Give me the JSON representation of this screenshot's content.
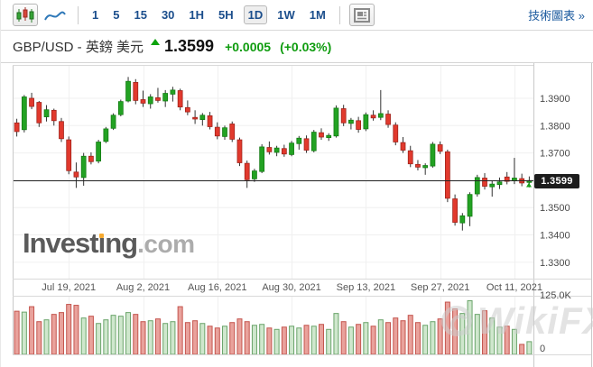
{
  "toolbar": {
    "chart_type_buttons": [
      {
        "name": "candlestick",
        "selected": true
      },
      {
        "name": "line",
        "selected": false
      }
    ],
    "timeframes": [
      {
        "label": "1",
        "selected": false
      },
      {
        "label": "5",
        "selected": false
      },
      {
        "label": "15",
        "selected": false
      },
      {
        "label": "30",
        "selected": false
      },
      {
        "label": "1H",
        "selected": false
      },
      {
        "label": "5H",
        "selected": false
      },
      {
        "label": "1D",
        "selected": true
      },
      {
        "label": "1W",
        "selected": false
      },
      {
        "label": "1M",
        "selected": false
      }
    ],
    "link_label": "技術圖表 »"
  },
  "quote": {
    "symbol": "GBP/USD - 英鎊 美元",
    "direction": "up",
    "price": "1.3599",
    "change": "+0.0005",
    "change_pct": "(+0.03%)"
  },
  "watermarks": {
    "investing": {
      "p1": "Invest",
      "p2": "ı",
      "p3": "ng",
      "suffix": ".com"
    },
    "wikifx": "WikiFX"
  },
  "colors": {
    "up": "#23a223",
    "up_border": "#127a12",
    "down": "#e1392d",
    "down_border": "#9d2018",
    "wick": "#333333",
    "vol_up_fill": "#cfe7cd",
    "vol_up_stroke": "#6aa46a",
    "vol_down_fill": "#e9a29c",
    "vol_down_stroke": "#c4554e",
    "grid": "#f0f0f0",
    "axis_border": "#c9c9c9",
    "price_line": "#222222",
    "badge_bg": "#1c1c1c",
    "accent_blue": "#1b4e8c",
    "quote_green": "#0f9c0f",
    "marker_green": "#18a018"
  },
  "chart_data": {
    "type": "candlestick",
    "title": "GBP/USD daily candlestick chart with volume",
    "price_axis": {
      "max": 1.4022,
      "min": 1.324
    },
    "grid_prices": [
      1.39,
      1.38,
      1.37,
      1.36,
      1.35,
      1.34,
      1.33
    ],
    "y_ticks": [
      {
        "label": "1.3900",
        "value": 1.39
      },
      {
        "label": "1.3800",
        "value": 1.38
      },
      {
        "label": "1.3700",
        "value": 1.37
      },
      {
        "label": "1.3500",
        "value": 1.35
      },
      {
        "label": "1.3400",
        "value": 1.34
      },
      {
        "label": "1.3300",
        "value": 1.33
      }
    ],
    "x_labels": [
      {
        "label": "Jul 19, 2021",
        "index": 7
      },
      {
        "label": "Aug 2, 2021",
        "index": 17
      },
      {
        "label": "Aug 16, 2021",
        "index": 27
      },
      {
        "label": "Aug 30, 2021",
        "index": 37
      },
      {
        "label": "Sep 13, 2021",
        "index": 47
      },
      {
        "label": "Sep 27, 2021",
        "index": 57
      },
      {
        "label": "Oct 11, 2021",
        "index": 67
      }
    ],
    "current_price": 1.3599,
    "current_price_label": "1.3599",
    "volume_axis": {
      "max": 125,
      "top_label": "125.0K",
      "bottom_label": "0"
    },
    "candles_format": [
      "open",
      "high",
      "low",
      "close",
      "volume_k"
    ],
    "candles": [
      [
        1.381,
        1.3825,
        1.376,
        1.3778,
        95
      ],
      [
        1.3785,
        1.3912,
        1.3775,
        1.3905,
        93
      ],
      [
        1.39,
        1.392,
        1.386,
        1.387,
        105
      ],
      [
        1.3885,
        1.389,
        1.3795,
        1.381,
        72
      ],
      [
        1.3832,
        1.3875,
        1.3815,
        1.3858,
        76
      ],
      [
        1.3856,
        1.3862,
        1.38,
        1.3818,
        88
      ],
      [
        1.3815,
        1.3828,
        1.374,
        1.3752,
        92
      ],
      [
        1.3748,
        1.376,
        1.3622,
        1.3635,
        110
      ],
      [
        1.363,
        1.3665,
        1.3572,
        1.3612,
        108
      ],
      [
        1.361,
        1.37,
        1.358,
        1.3688,
        80
      ],
      [
        1.3688,
        1.3702,
        1.3658,
        1.3668,
        84
      ],
      [
        1.367,
        1.3748,
        1.3662,
        1.374,
        68
      ],
      [
        1.3742,
        1.3795,
        1.3736,
        1.3788,
        76
      ],
      [
        1.379,
        1.3845,
        1.3784,
        1.3838,
        86
      ],
      [
        1.384,
        1.3895,
        1.3834,
        1.3888,
        84
      ],
      [
        1.389,
        1.3978,
        1.3885,
        1.3962,
        92
      ],
      [
        1.3958,
        1.397,
        1.3878,
        1.3892,
        88
      ],
      [
        1.3895,
        1.3928,
        1.3868,
        1.3882,
        72
      ],
      [
        1.388,
        1.3915,
        1.3862,
        1.3905,
        74
      ],
      [
        1.3902,
        1.3938,
        1.3884,
        1.3892,
        78
      ],
      [
        1.389,
        1.393,
        1.3868,
        1.3918,
        68
      ],
      [
        1.3915,
        1.3942,
        1.3888,
        1.393,
        72
      ],
      [
        1.3928,
        1.3935,
        1.3856,
        1.3868,
        105
      ],
      [
        1.3866,
        1.3892,
        1.3838,
        1.385,
        70
      ],
      [
        1.383,
        1.3856,
        1.3806,
        1.3824,
        74
      ],
      [
        1.3822,
        1.3846,
        1.38,
        1.3838,
        68
      ],
      [
        1.3836,
        1.385,
        1.3786,
        1.3796,
        62
      ],
      [
        1.3794,
        1.3812,
        1.375,
        1.3762,
        58
      ],
      [
        1.376,
        1.38,
        1.3748,
        1.3792,
        62
      ],
      [
        1.3806,
        1.3815,
        1.374,
        1.375,
        70
      ],
      [
        1.3748,
        1.3756,
        1.3652,
        1.3664,
        78
      ],
      [
        1.3662,
        1.3672,
        1.3572,
        1.3602,
        72
      ],
      [
        1.3605,
        1.3642,
        1.3594,
        1.3634,
        64
      ],
      [
        1.3632,
        1.3732,
        1.3626,
        1.3722,
        66
      ],
      [
        1.372,
        1.3742,
        1.3694,
        1.3704,
        58
      ],
      [
        1.3702,
        1.3726,
        1.3688,
        1.3718,
        55
      ],
      [
        1.3716,
        1.373,
        1.3686,
        1.3696,
        60
      ],
      [
        1.3694,
        1.3744,
        1.3688,
        1.3736,
        62
      ],
      [
        1.3734,
        1.3762,
        1.3712,
        1.3754,
        58
      ],
      [
        1.3752,
        1.3764,
        1.37,
        1.371,
        64
      ],
      [
        1.3708,
        1.3784,
        1.3702,
        1.3776,
        62
      ],
      [
        1.3774,
        1.379,
        1.3748,
        1.3758,
        66
      ],
      [
        1.3756,
        1.3772,
        1.3744,
        1.3764,
        55
      ],
      [
        1.3762,
        1.3874,
        1.3756,
        1.3864,
        90
      ],
      [
        1.3862,
        1.3876,
        1.3798,
        1.381,
        72
      ],
      [
        1.3808,
        1.3828,
        1.3786,
        1.382,
        60
      ],
      [
        1.3818,
        1.3832,
        1.3774,
        1.3786,
        66
      ],
      [
        1.3788,
        1.3848,
        1.378,
        1.384,
        70
      ],
      [
        1.3838,
        1.3856,
        1.3818,
        1.3828,
        62
      ],
      [
        1.383,
        1.393,
        1.382,
        1.3844,
        76
      ],
      [
        1.3842,
        1.3856,
        1.3792,
        1.3804,
        70
      ],
      [
        1.3802,
        1.3812,
        1.3728,
        1.374,
        80
      ],
      [
        1.3738,
        1.3758,
        1.37,
        1.371,
        74
      ],
      [
        1.3708,
        1.3726,
        1.3648,
        1.366,
        86
      ],
      [
        1.3658,
        1.3674,
        1.3636,
        1.3648,
        70
      ],
      [
        1.3646,
        1.3662,
        1.362,
        1.3654,
        64
      ],
      [
        1.3652,
        1.374,
        1.3646,
        1.3732,
        72
      ],
      [
        1.373,
        1.3742,
        1.3696,
        1.3706,
        78
      ],
      [
        1.3704,
        1.3712,
        1.352,
        1.3534,
        115
      ],
      [
        1.3532,
        1.3548,
        1.3434,
        1.3446,
        100
      ],
      [
        1.3444,
        1.348,
        1.3416,
        1.347,
        90
      ],
      [
        1.3468,
        1.3556,
        1.3432,
        1.3548,
        118
      ],
      [
        1.355,
        1.362,
        1.354,
        1.361,
        88
      ],
      [
        1.3608,
        1.3626,
        1.3566,
        1.3578,
        96
      ],
      [
        1.3576,
        1.36,
        1.354,
        1.3586,
        80
      ],
      [
        1.3584,
        1.361,
        1.3568,
        1.3594,
        60
      ],
      [
        1.3612,
        1.363,
        1.3585,
        1.3596,
        62
      ],
      [
        1.3598,
        1.3682,
        1.3586,
        1.3608,
        55
      ],
      [
        1.3606,
        1.3624,
        1.3578,
        1.359,
        22
      ],
      [
        1.3592,
        1.3614,
        1.3574,
        1.3599,
        28
      ]
    ]
  }
}
